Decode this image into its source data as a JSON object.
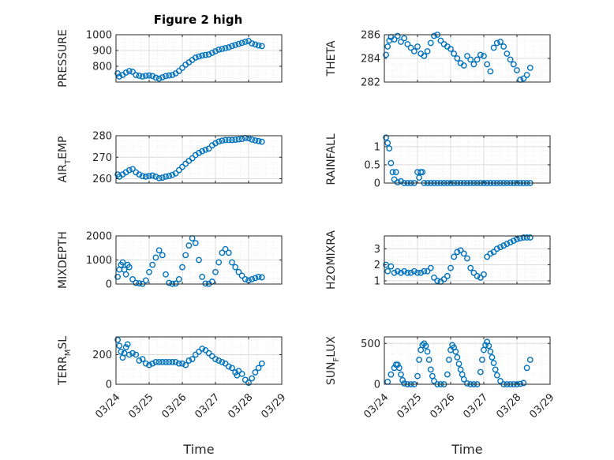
{
  "figure": {
    "title": "Figure 2 high",
    "xlabel": "Time",
    "x_ticks": [
      "03/24",
      "03/25",
      "03/26",
      "03/27",
      "03/28",
      "03/29"
    ],
    "marker_color": "#0072BD"
  },
  "chart_data": [
    {
      "type": "scatter",
      "name": "pressure",
      "ylabel": "PRESSURE",
      "ylim": [
        700,
        1000
      ],
      "yticks": [
        800,
        900,
        1000
      ],
      "xlim": [
        0,
        5
      ],
      "grid": true,
      "x": [
        0.05,
        0.1,
        0.2,
        0.3,
        0.4,
        0.5,
        0.6,
        0.7,
        0.8,
        0.9,
        1.0,
        1.1,
        1.2,
        1.3,
        1.4,
        1.5,
        1.6,
        1.7,
        1.8,
        1.9,
        2.0,
        2.1,
        2.2,
        2.3,
        2.4,
        2.5,
        2.6,
        2.7,
        2.8,
        2.9,
        3.0,
        3.1,
        3.2,
        3.3,
        3.4,
        3.5,
        3.6,
        3.7,
        3.8,
        3.9,
        4.0,
        4.1,
        4.2,
        4.3,
        4.4
      ],
      "y": [
        755,
        735,
        745,
        760,
        770,
        765,
        745,
        740,
        735,
        740,
        742,
        738,
        728,
        722,
        730,
        738,
        742,
        745,
        755,
        770,
        790,
        810,
        825,
        840,
        855,
        862,
        868,
        872,
        875,
        885,
        895,
        905,
        910,
        915,
        920,
        928,
        935,
        942,
        948,
        955,
        960,
        945,
        938,
        932,
        928
      ]
    },
    {
      "type": "scatter",
      "name": "theta",
      "ylabel": "THETA",
      "ylim": [
        282,
        286
      ],
      "yticks": [
        282,
        284,
        286
      ],
      "xlim": [
        0,
        5
      ],
      "grid": true,
      "x": [
        0.05,
        0.1,
        0.15,
        0.2,
        0.3,
        0.4,
        0.5,
        0.6,
        0.7,
        0.8,
        0.9,
        1.0,
        1.1,
        1.2,
        1.3,
        1.4,
        1.5,
        1.6,
        1.7,
        1.8,
        1.9,
        2.0,
        2.1,
        2.2,
        2.3,
        2.4,
        2.5,
        2.6,
        2.7,
        2.8,
        2.9,
        3.0,
        3.1,
        3.2,
        3.3,
        3.4,
        3.5,
        3.6,
        3.7,
        3.8,
        3.9,
        4.0,
        4.1,
        4.2,
        4.3,
        4.4
      ],
      "y": [
        284.3,
        285.0,
        285.5,
        285.8,
        285.6,
        285.9,
        285.4,
        285.7,
        285.2,
        284.9,
        284.6,
        285.0,
        284.4,
        284.2,
        284.6,
        285.3,
        285.9,
        286.0,
        285.5,
        285.2,
        285.0,
        284.8,
        284.4,
        284.0,
        283.6,
        283.4,
        284.2,
        283.9,
        283.5,
        283.9,
        284.3,
        284.2,
        283.5,
        282.9,
        284.9,
        285.3,
        285.4,
        285.0,
        284.4,
        283.9,
        283.5,
        283.0,
        282.2,
        282.3,
        282.6,
        283.2
      ]
    },
    {
      "type": "scatter",
      "name": "air_temp",
      "ylabel": "AIR",
      "ylabel_sub": "T",
      "ylabel_rest": "EMP",
      "ylim": [
        258,
        280
      ],
      "yticks": [
        260,
        270,
        280
      ],
      "xlim": [
        0,
        5
      ],
      "grid": true,
      "x": [
        0.05,
        0.1,
        0.2,
        0.3,
        0.4,
        0.5,
        0.6,
        0.7,
        0.8,
        0.9,
        1.0,
        1.1,
        1.2,
        1.3,
        1.4,
        1.5,
        1.6,
        1.7,
        1.8,
        1.9,
        2.0,
        2.1,
        2.2,
        2.3,
        2.4,
        2.5,
        2.6,
        2.7,
        2.8,
        2.9,
        3.0,
        3.1,
        3.2,
        3.3,
        3.4,
        3.5,
        3.6,
        3.7,
        3.8,
        3.9,
        4.0,
        4.1,
        4.2,
        4.3,
        4.4
      ],
      "y": [
        262,
        261,
        262,
        263,
        264,
        264.5,
        263,
        262,
        261.2,
        261,
        261.3,
        261.5,
        261,
        260.3,
        260.5,
        261,
        261.3,
        261.8,
        262.5,
        264,
        265.5,
        267,
        268.3,
        269.5,
        271,
        272,
        272.8,
        273.5,
        274,
        275.5,
        276.5,
        277.3,
        277.7,
        278,
        278,
        278,
        278.1,
        278.3,
        278.5,
        279,
        278.8,
        278.2,
        277.8,
        277.5,
        277.2
      ]
    },
    {
      "type": "scatter",
      "name": "rainfall",
      "ylabel": "RAINFALL",
      "ylim": [
        0,
        1.3
      ],
      "yticks": [
        0,
        0.5,
        1
      ],
      "ytick_labels": [
        "0",
        "0.5",
        "1"
      ],
      "xlim": [
        0,
        5
      ],
      "grid": true,
      "x": [
        0.05,
        0.1,
        0.15,
        0.2,
        0.25,
        0.3,
        0.35,
        0.4,
        0.5,
        0.6,
        0.7,
        0.8,
        0.9,
        1.0,
        1.05,
        1.1,
        1.15,
        1.2,
        1.3,
        1.4,
        1.5,
        1.6,
        1.7,
        1.8,
        1.9,
        2.0,
        2.1,
        2.2,
        2.3,
        2.4,
        2.5,
        2.6,
        2.7,
        2.8,
        2.9,
        3.0,
        3.1,
        3.2,
        3.3,
        3.4,
        3.5,
        3.6,
        3.7,
        3.8,
        3.9,
        4.0,
        4.1,
        4.2,
        4.3,
        4.4
      ],
      "y": [
        1.25,
        1.1,
        0.95,
        0.55,
        0.3,
        0.1,
        0.3,
        0.02,
        0.05,
        0,
        0,
        0,
        0,
        0.3,
        0.15,
        0.3,
        0.3,
        0,
        0,
        0,
        0,
        0,
        0,
        0,
        0,
        0,
        0,
        0,
        0,
        0,
        0,
        0,
        0,
        0,
        0,
        0,
        0,
        0,
        0,
        0,
        0,
        0,
        0,
        0,
        0,
        0,
        0,
        0,
        0,
        0
      ]
    },
    {
      "type": "scatter",
      "name": "mixdepth",
      "ylabel": "MIXDEPTH",
      "ylim": [
        0,
        2000
      ],
      "yticks": [
        0,
        1000,
        2000
      ],
      "xlim": [
        0,
        5
      ],
      "grid": true,
      "x": [
        0.05,
        0.1,
        0.15,
        0.2,
        0.25,
        0.3,
        0.35,
        0.4,
        0.5,
        0.6,
        0.7,
        0.8,
        0.9,
        1.0,
        1.1,
        1.2,
        1.3,
        1.4,
        1.5,
        1.6,
        1.7,
        1.8,
        1.9,
        2.0,
        2.1,
        2.2,
        2.3,
        2.4,
        2.5,
        2.6,
        2.7,
        2.8,
        2.9,
        3.0,
        3.1,
        3.2,
        3.3,
        3.4,
        3.5,
        3.6,
        3.7,
        3.8,
        3.9,
        4.0,
        4.1,
        4.2,
        4.3,
        4.4
      ],
      "y": [
        300,
        600,
        800,
        900,
        600,
        400,
        800,
        700,
        200,
        50,
        30,
        10,
        150,
        500,
        800,
        1100,
        1400,
        1200,
        400,
        50,
        10,
        20,
        200,
        700,
        1200,
        1600,
        1900,
        1700,
        1000,
        300,
        20,
        10,
        100,
        500,
        900,
        1300,
        1450,
        1300,
        900,
        700,
        500,
        350,
        200,
        150,
        200,
        250,
        300,
        280
      ]
    },
    {
      "type": "scatter",
      "name": "h2omixra",
      "ylabel": "H2OMIXRA",
      "ylim": [
        0.8,
        3.8
      ],
      "yticks": [
        1,
        2,
        3
      ],
      "xlim": [
        0,
        5
      ],
      "grid": true,
      "x": [
        0.05,
        0.1,
        0.2,
        0.3,
        0.4,
        0.5,
        0.6,
        0.7,
        0.8,
        0.9,
        1.0,
        1.1,
        1.2,
        1.3,
        1.4,
        1.5,
        1.6,
        1.7,
        1.8,
        1.9,
        2.0,
        2.1,
        2.2,
        2.3,
        2.4,
        2.5,
        2.6,
        2.7,
        2.8,
        2.9,
        3.0,
        3.1,
        3.2,
        3.3,
        3.4,
        3.5,
        3.6,
        3.7,
        3.8,
        3.9,
        4.0,
        4.1,
        4.2,
        4.3,
        4.4
      ],
      "y": [
        2.0,
        1.6,
        1.9,
        1.5,
        1.6,
        1.5,
        1.6,
        1.5,
        1.5,
        1.6,
        1.5,
        1.5,
        1.6,
        1.6,
        1.8,
        1.2,
        1.0,
        0.95,
        1.1,
        1.3,
        1.8,
        2.5,
        2.8,
        2.9,
        2.7,
        2.4,
        1.8,
        1.5,
        1.3,
        1.2,
        1.4,
        2.5,
        2.7,
        2.8,
        3.0,
        3.1,
        3.2,
        3.3,
        3.4,
        3.5,
        3.6,
        3.65,
        3.7,
        3.7,
        3.7
      ]
    },
    {
      "type": "scatter",
      "name": "terr_msl",
      "ylabel": "TERR",
      "ylabel_sub": "M",
      "ylabel_rest": "SL",
      "ylim": [
        0,
        320
      ],
      "yticks": [
        0,
        200
      ],
      "xlim": [
        0,
        5
      ],
      "grid": true,
      "x": [
        0.05,
        0.1,
        0.15,
        0.2,
        0.25,
        0.3,
        0.35,
        0.4,
        0.5,
        0.6,
        0.7,
        0.8,
        0.9,
        1.0,
        1.1,
        1.2,
        1.3,
        1.4,
        1.5,
        1.6,
        1.7,
        1.8,
        1.9,
        2.0,
        2.1,
        2.2,
        2.3,
        2.4,
        2.5,
        2.6,
        2.7,
        2.8,
        2.9,
        3.0,
        3.1,
        3.2,
        3.3,
        3.4,
        3.5,
        3.6,
        3.65,
        3.7,
        3.8,
        3.9,
        4.0,
        4.1,
        4.2,
        4.3,
        4.4
      ],
      "y": [
        300,
        260,
        220,
        180,
        210,
        250,
        270,
        200,
        210,
        200,
        160,
        170,
        140,
        130,
        140,
        150,
        150,
        150,
        150,
        150,
        150,
        150,
        140,
        140,
        130,
        160,
        170,
        200,
        220,
        240,
        230,
        210,
        190,
        170,
        160,
        150,
        140,
        120,
        110,
        80,
        60,
        90,
        70,
        30,
        10,
        40,
        80,
        110,
        140
      ]
    },
    {
      "type": "scatter",
      "name": "sun_flux",
      "ylabel": "SUN",
      "ylabel_sub": "F",
      "ylabel_rest": "LUX",
      "ylim": [
        0,
        580
      ],
      "yticks": [
        0,
        500
      ],
      "xlim": [
        0,
        5
      ],
      "grid": true,
      "x": [
        0.1,
        0.2,
        0.3,
        0.35,
        0.4,
        0.45,
        0.5,
        0.55,
        0.6,
        0.7,
        0.8,
        0.9,
        1.0,
        1.05,
        1.1,
        1.15,
        1.2,
        1.25,
        1.3,
        1.35,
        1.4,
        1.45,
        1.5,
        1.6,
        1.7,
        1.8,
        1.9,
        1.95,
        2.0,
        2.05,
        2.1,
        2.15,
        2.2,
        2.25,
        2.3,
        2.35,
        2.4,
        2.5,
        2.6,
        2.7,
        2.8,
        2.9,
        2.95,
        3.0,
        3.05,
        3.1,
        3.15,
        3.2,
        3.25,
        3.3,
        3.35,
        3.4,
        3.5,
        3.6,
        3.7,
        3.8,
        3.9,
        4.0,
        4.1,
        4.2,
        4.3,
        4.4
      ],
      "y": [
        30,
        120,
        200,
        240,
        240,
        200,
        120,
        50,
        10,
        0,
        0,
        0,
        100,
        300,
        420,
        480,
        500,
        470,
        400,
        300,
        180,
        100,
        40,
        0,
        0,
        0,
        120,
        300,
        420,
        480,
        450,
        400,
        330,
        250,
        180,
        120,
        60,
        10,
        0,
        0,
        0,
        150,
        300,
        420,
        480,
        520,
        470,
        400,
        330,
        260,
        180,
        110,
        40,
        0,
        0,
        0,
        0,
        0,
        5,
        15,
        200,
        300
      ]
    }
  ]
}
